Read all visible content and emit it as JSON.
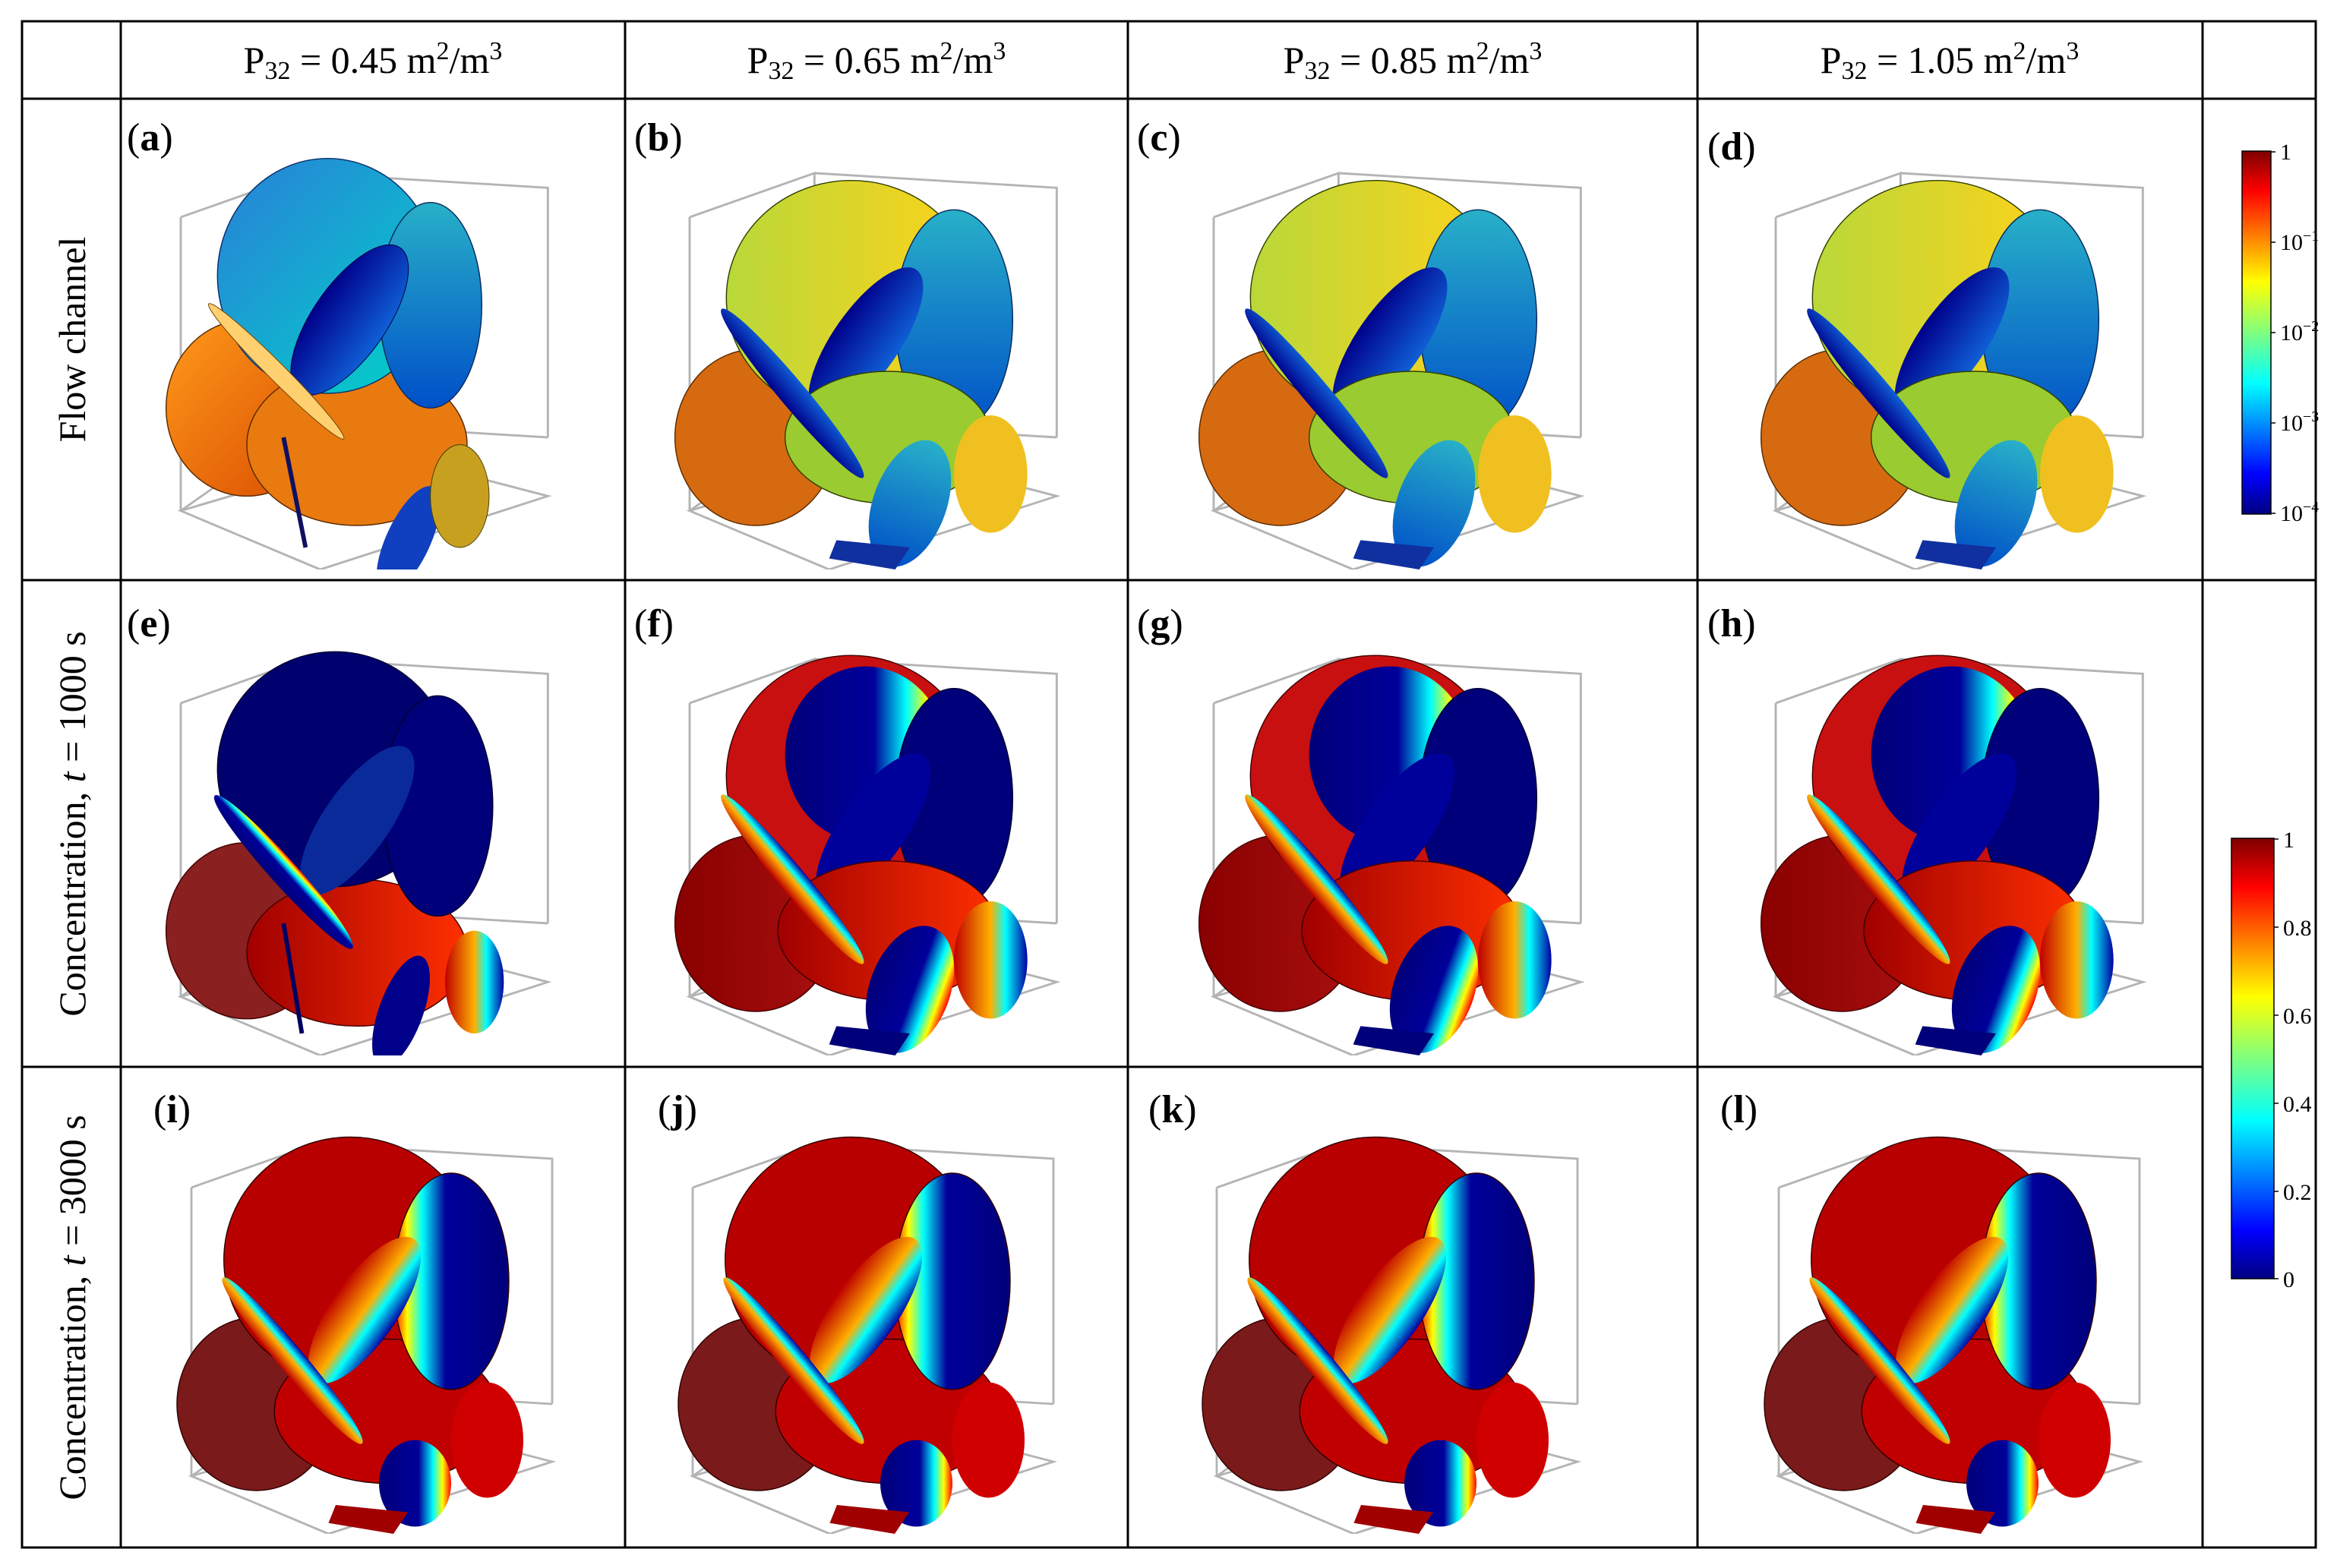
{
  "columns": [
    {
      "prefix": "P",
      "sub": "32",
      "value": " = 0.45 m",
      "sup1": "2",
      "unit": "/m",
      "sup2": "3"
    },
    {
      "prefix": "P",
      "sub": "32",
      "value": " = 0.65 m",
      "sup1": "2",
      "unit": "/m",
      "sup2": "3"
    },
    {
      "prefix": "P",
      "sub": "32",
      "value": " = 0.85 m",
      "sup1": "2",
      "unit": "/m",
      "sup2": "3"
    },
    {
      "prefix": "P",
      "sub": "32",
      "value": " = 1.05 m",
      "sup1": "2",
      "unit": "/m",
      "sup2": "3"
    }
  ],
  "rows": [
    {
      "label_pre": "Flow channel",
      "label_var": "",
      "label_post": ""
    },
    {
      "label_pre": "Concentration, ",
      "label_var": "t",
      "label_post": " = 1000 s"
    },
    {
      "label_pre": "Concentration, ",
      "label_var": "t",
      "label_post": " = 3000 s"
    }
  ],
  "panels": [
    "a",
    "b",
    "c",
    "d",
    "e",
    "f",
    "g",
    "h",
    "i",
    "j",
    "k",
    "l"
  ],
  "colorbars": {
    "flow": {
      "scale": "log",
      "ticks": [
        {
          "base": "1",
          "exp": ""
        },
        {
          "base": "10",
          "exp": "−1"
        },
        {
          "base": "10",
          "exp": "−2"
        },
        {
          "base": "10",
          "exp": "−3"
        },
        {
          "base": "10",
          "exp": "−4"
        }
      ]
    },
    "concentration": {
      "scale": "linear",
      "ticks": [
        "1",
        "0.8",
        "0.6",
        "0.4",
        "0.2",
        "0"
      ]
    }
  },
  "colors": {
    "jet_dark_red": "#7f0000",
    "jet_red": "#ff0000",
    "jet_yellow": "#ffff00",
    "jet_cyan": "#00ffff",
    "jet_blue": "#0000ff",
    "jet_dark_blue": "#00007f"
  }
}
